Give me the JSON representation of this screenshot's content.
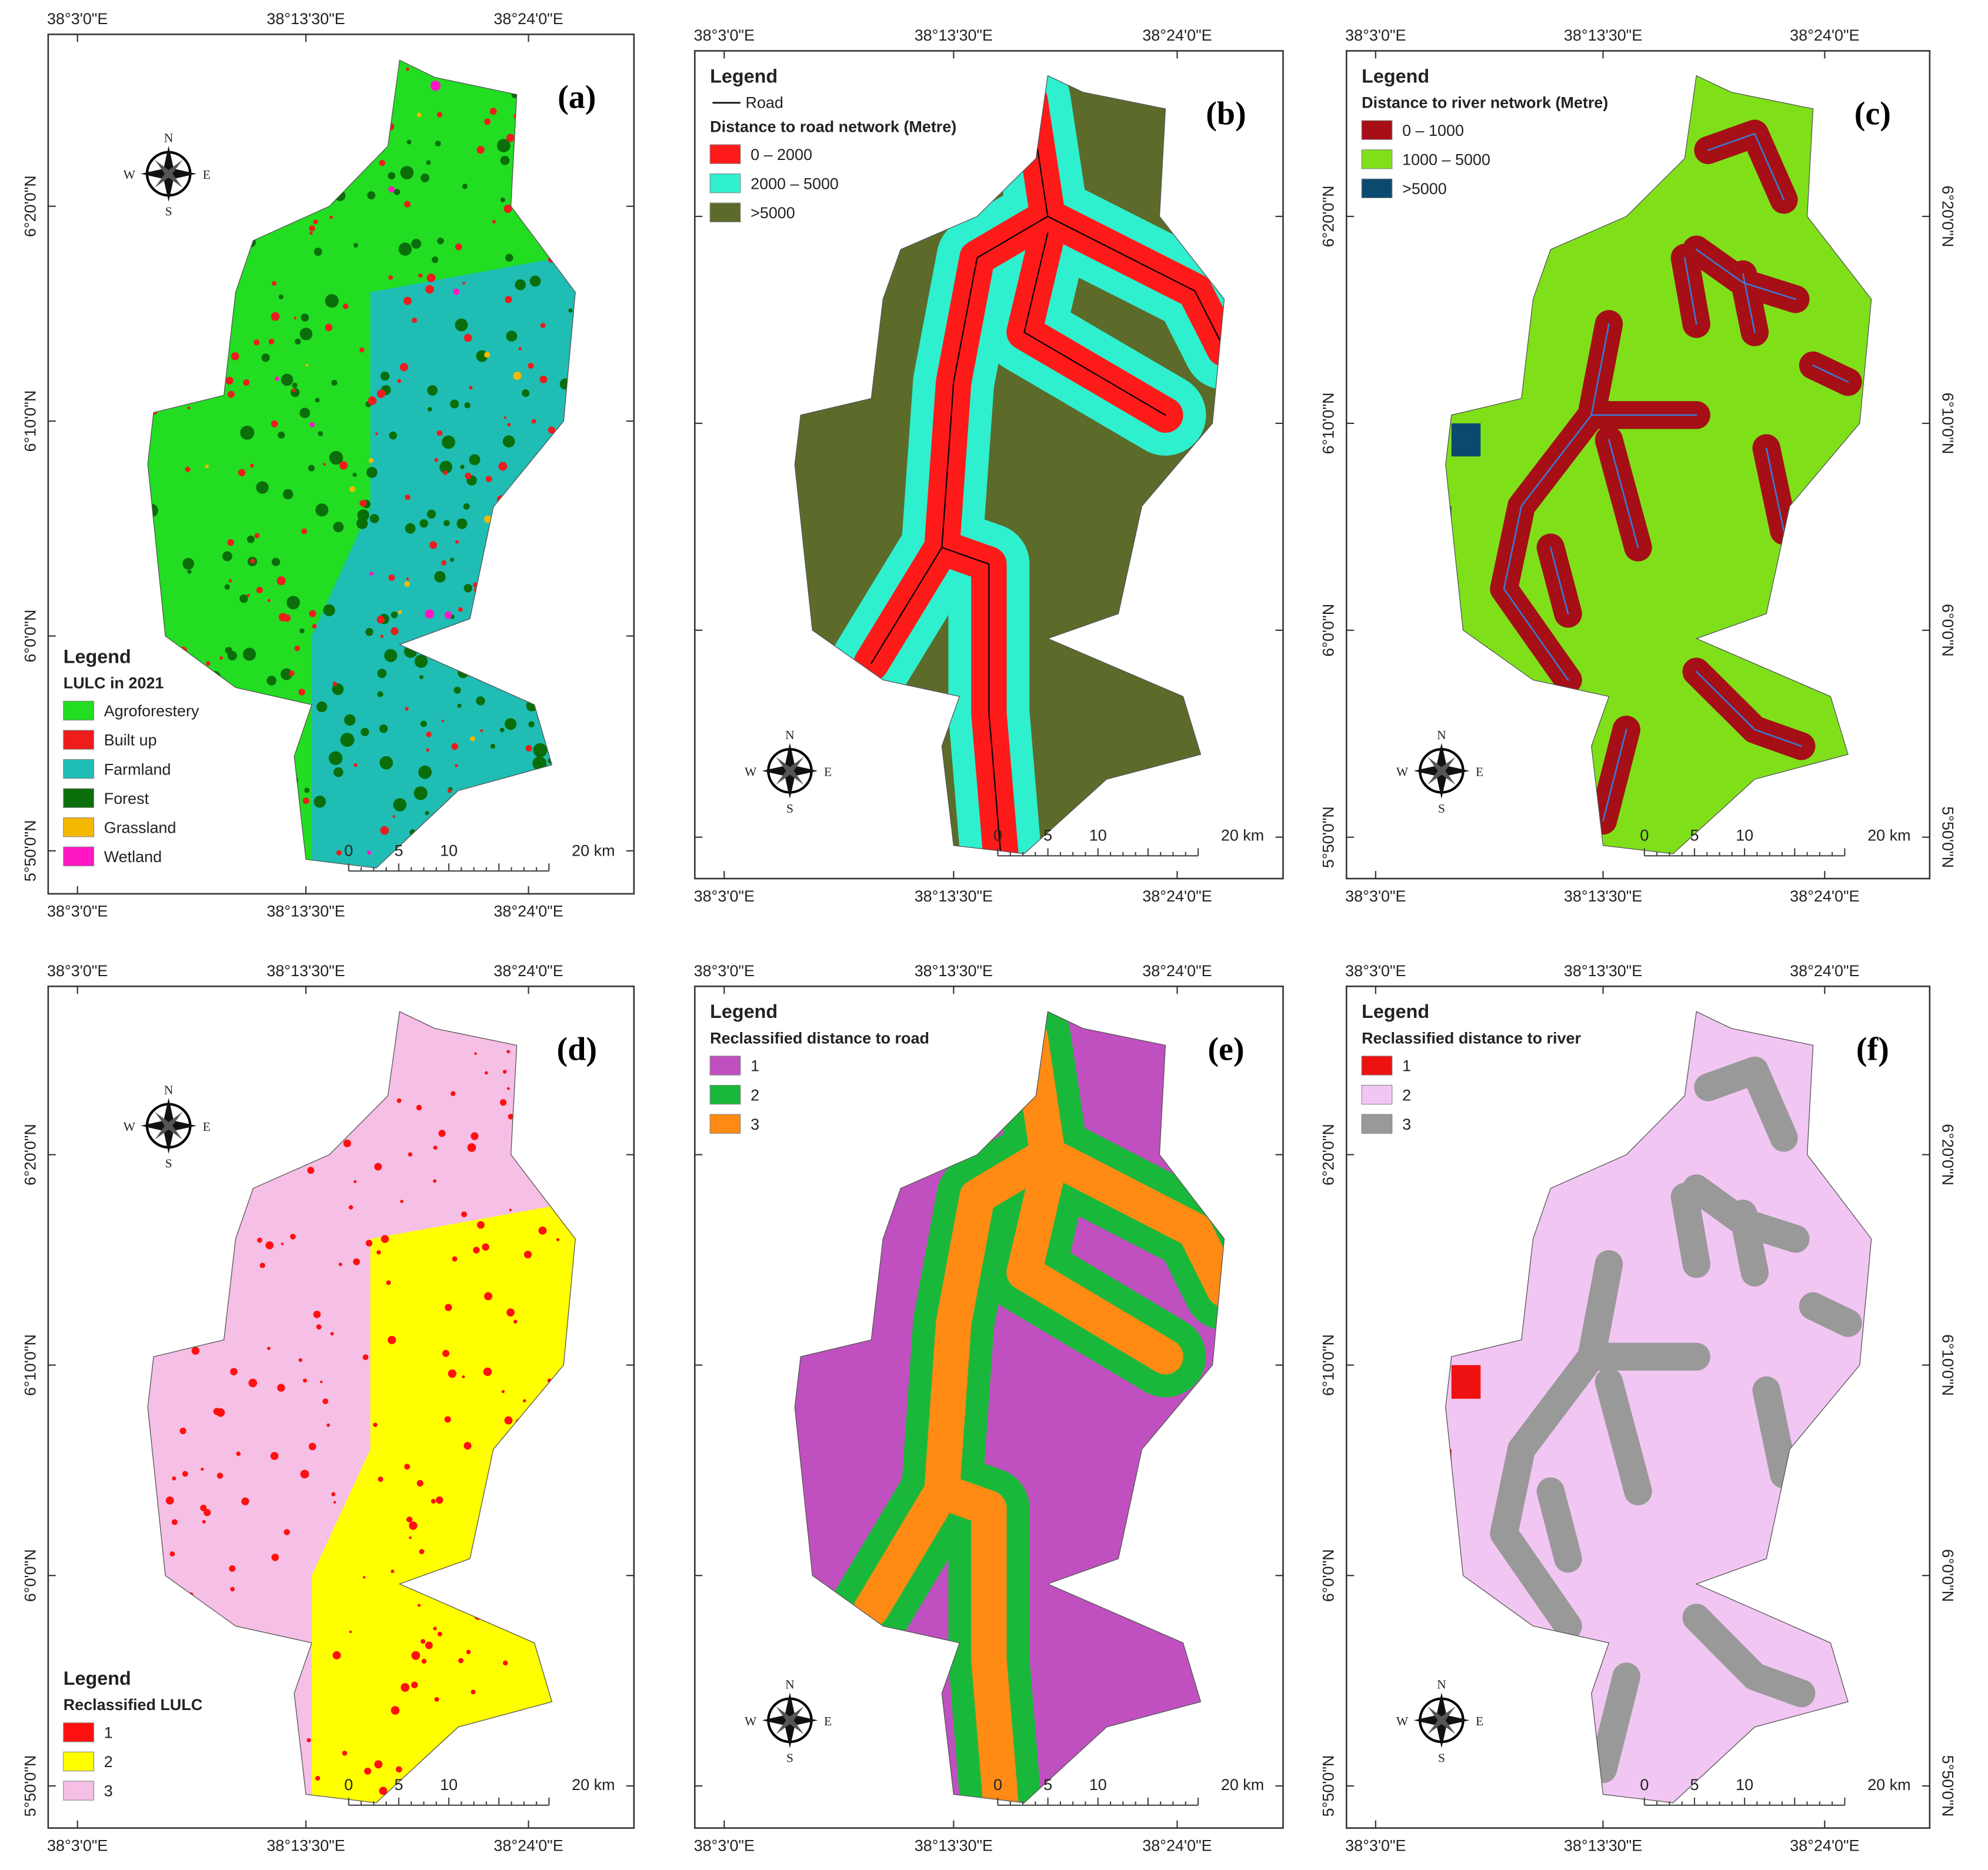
{
  "panels": [
    {
      "label": "(a)",
      "legend_corner": "bottom-left",
      "compass_corner": "top-left",
      "style": "lulc",
      "legend_title": "Legend",
      "legend_subtitle": "LULC in 2021",
      "items": [
        {
          "label": "Agroforestery",
          "color": "#22dd22"
        },
        {
          "label": "Built up",
          "color": "#ee1c1c"
        },
        {
          "label": "Farmland",
          "color": "#1fbdb4"
        },
        {
          "label": "Forest",
          "color": "#0a6e0a"
        },
        {
          "label": "Grassland",
          "color": "#f5b800"
        },
        {
          "label": "Wetland",
          "color": "#ff17c5"
        }
      ],
      "top_axis": [
        "38°3'0\"E",
        "38°13'30\"E",
        "38°24'0\"E"
      ],
      "bottom_axis": [
        "38°3'0\"E",
        "38°13'30\"E",
        "38°24'0\"E"
      ],
      "left_axis": [
        "6°20'0\"N",
        "6°10'0\"N",
        "6°0'0\"N",
        "5°50'0\"N"
      ],
      "scale": [
        "0",
        "5",
        "10",
        "20 km"
      ],
      "compass": [
        "N",
        "S",
        "W",
        "E"
      ]
    },
    {
      "label": "(b)",
      "legend_corner": "top-left",
      "compass_corner": "bottom-left",
      "style": "road",
      "legend_title": "Legend",
      "line_item": {
        "label": "Road",
        "color": "#000000"
      },
      "legend_subtitle": "Distance to road network (Metre)",
      "items": [
        {
          "label": "0 – 2000",
          "color": "#ff1a1a"
        },
        {
          "label": "2000 – 5000",
          "color": "#2ef0cf"
        },
        {
          "label": ">5000",
          "color": "#5c6b2a"
        }
      ],
      "top_axis": [
        "38°3'0\"E",
        "38°13'30\"E",
        "38°24'0\"E"
      ],
      "bottom_axis": [
        "38°3'0\"E",
        "38°13'30\"E",
        "38°24'0\"E"
      ],
      "scale": [
        "0",
        "5",
        "10",
        "20 km"
      ],
      "compass": [
        "N",
        "S",
        "W",
        "E"
      ]
    },
    {
      "label": "(c)",
      "legend_corner": "top-left",
      "compass_corner": "bottom-left",
      "style": "river",
      "legend_title": "Legend",
      "legend_subtitle": "Distance to river network (Metre)",
      "items": [
        {
          "label": "0 – 1000",
          "color": "#a50f15"
        },
        {
          "label": "1000 – 5000",
          "color": "#7fe01a"
        },
        {
          "label": ">5000",
          "color": "#0b4a6e"
        }
      ],
      "top_axis": [
        "38°3'0\"E",
        "38°13'30\"E",
        "38°24'0\"E"
      ],
      "bottom_axis": [
        "38°3'0\"E",
        "38°13'30\"E",
        "38°24'0\"E"
      ],
      "left_axis": [
        "6°20'0\"N",
        "6°10'0\"N",
        "6°0'0\"N",
        "5°50'0\"N"
      ],
      "right_axis": [
        "6°20'0\"N",
        "6°10'0\"N",
        "6°0'0\"N",
        "5°50'0\"N"
      ],
      "scale": [
        "0",
        "5",
        "10",
        "20 km"
      ],
      "compass": [
        "N",
        "S",
        "W",
        "E"
      ]
    },
    {
      "label": "(d)",
      "legend_corner": "bottom-left",
      "compass_corner": "top-left",
      "style": "rlulc",
      "legend_title": "Legend",
      "legend_subtitle": "Reclassified LULC",
      "items": [
        {
          "label": "1",
          "color": "#ff1010"
        },
        {
          "label": "2",
          "color": "#ffff00"
        },
        {
          "label": "3",
          "color": "#f5bfe6"
        }
      ],
      "top_axis": [
        "38°3'0\"E",
        "38°13'30\"E",
        "38°24'0\"E"
      ],
      "bottom_axis": [
        "38°3'0\"E",
        "38°13'30\"E",
        "38°24'0\"E"
      ],
      "left_axis": [
        "6°20'0\"N",
        "6°10'0\"N",
        "6°0'0\"N",
        "5°50'0\"N"
      ],
      "scale": [
        "0",
        "5",
        "10",
        "20 km"
      ],
      "compass": [
        "N",
        "S",
        "W",
        "E"
      ]
    },
    {
      "label": "(e)",
      "legend_corner": "top-left",
      "compass_corner": "bottom-left",
      "style": "rroad",
      "legend_title": "Legend",
      "legend_subtitle": "Reclassified distance to road",
      "items": [
        {
          "label": "1",
          "color": "#c050c0"
        },
        {
          "label": "2",
          "color": "#1ab83a"
        },
        {
          "label": "3",
          "color": "#ff8a14"
        }
      ],
      "top_axis": [
        "38°3'0\"E",
        "38°13'30\"E",
        "38°24'0\"E"
      ],
      "bottom_axis": [
        "38°3'0\"E",
        "38°13'30\"E",
        "38°24'0\"E"
      ],
      "scale": [
        "0",
        "5",
        "10",
        "20 km"
      ],
      "compass": [
        "N",
        "S",
        "W",
        "E"
      ]
    },
    {
      "label": "(f)",
      "legend_corner": "top-left",
      "compass_corner": "bottom-left",
      "style": "rriver",
      "legend_title": "Legend",
      "legend_subtitle": "Reclassified distance to river",
      "items": [
        {
          "label": "1",
          "color": "#ee1111"
        },
        {
          "label": "2",
          "color": "#f2c6f2"
        },
        {
          "label": "3",
          "color": "#999999"
        }
      ],
      "top_axis": [
        "38°3'0\"E",
        "38°13'30\"E",
        "38°24'0\"E"
      ],
      "bottom_axis": [
        "38°3'0\"E",
        "38°13'30\"E",
        "38°24'0\"E"
      ],
      "left_axis": [
        "6°20'0\"N",
        "6°10'0\"N",
        "6°0'0\"N",
        "5°50'0\"N"
      ],
      "right_axis": [
        "6°20'0\"N",
        "6°10'0\"N",
        "6°0'0\"N",
        "5°50'0\"N"
      ],
      "scale": [
        "0",
        "5",
        "10",
        "20 km"
      ],
      "compass": [
        "N",
        "S",
        "W",
        "E"
      ]
    }
  ]
}
